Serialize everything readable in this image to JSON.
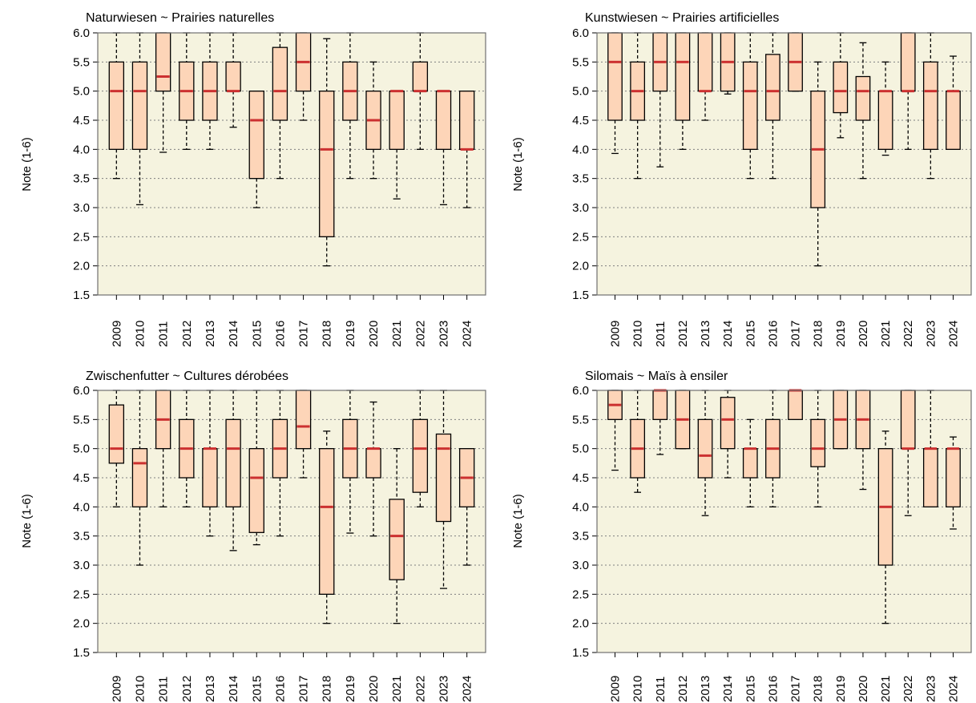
{
  "colors": {
    "plot_background": "#f5f3df",
    "box_fill": "#fdd5b8",
    "median": "#cc3030",
    "gridline": "#808080"
  },
  "chart_data": [
    {
      "type": "box",
      "title": "Naturwiesen   ~   Prairies naturelles",
      "ylabel": "Note (1-6)",
      "ylim": [
        1.5,
        6.0
      ],
      "yticks": [
        "1.5",
        "2.0",
        "2.5",
        "3.0",
        "3.5",
        "4.0",
        "4.5",
        "5.0",
        "5.5",
        "6.0"
      ],
      "grid": "horizontal dotted",
      "categories": [
        "2009",
        "2010",
        "2011",
        "2012",
        "2013",
        "2014",
        "2015",
        "2016",
        "2017",
        "2018",
        "2019",
        "2020",
        "2021",
        "2022",
        "2023",
        "2024"
      ],
      "boxes": [
        {
          "lower_whisker": 3.5,
          "q1": 4.0,
          "median": 5.0,
          "q3": 5.5,
          "upper_whisker": 6.0
        },
        {
          "lower_whisker": 3.05,
          "q1": 4.0,
          "median": 5.0,
          "q3": 5.5,
          "upper_whisker": 6.0
        },
        {
          "lower_whisker": 3.95,
          "q1": 5.0,
          "median": 5.25,
          "q3": 6.0,
          "upper_whisker": 6.0
        },
        {
          "lower_whisker": 4.0,
          "q1": 4.5,
          "median": 5.0,
          "q3": 5.5,
          "upper_whisker": 6.0
        },
        {
          "lower_whisker": 4.0,
          "q1": 4.5,
          "median": 5.0,
          "q3": 5.5,
          "upper_whisker": 6.0
        },
        {
          "lower_whisker": 4.38,
          "q1": 5.0,
          "median": 5.0,
          "q3": 5.5,
          "upper_whisker": 6.0
        },
        {
          "lower_whisker": 3.0,
          "q1": 3.5,
          "median": 4.5,
          "q3": 5.0,
          "upper_whisker": 5.0
        },
        {
          "lower_whisker": 3.5,
          "q1": 4.5,
          "median": 5.0,
          "q3": 5.75,
          "upper_whisker": 6.0
        },
        {
          "lower_whisker": 4.5,
          "q1": 5.0,
          "median": 5.5,
          "q3": 6.0,
          "upper_whisker": 6.0
        },
        {
          "lower_whisker": 2.0,
          "q1": 2.5,
          "median": 4.0,
          "q3": 5.0,
          "upper_whisker": 5.9
        },
        {
          "lower_whisker": 3.5,
          "q1": 4.5,
          "median": 5.0,
          "q3": 5.5,
          "upper_whisker": 6.0
        },
        {
          "lower_whisker": 3.5,
          "q1": 4.0,
          "median": 4.5,
          "q3": 5.0,
          "upper_whisker": 5.5
        },
        {
          "lower_whisker": 3.15,
          "q1": 4.0,
          "median": 5.0,
          "q3": 5.0,
          "upper_whisker": 5.0
        },
        {
          "lower_whisker": 4.0,
          "q1": 5.0,
          "median": 5.0,
          "q3": 5.5,
          "upper_whisker": 6.0
        },
        {
          "lower_whisker": 3.05,
          "q1": 4.0,
          "median": 5.0,
          "q3": 5.0,
          "upper_whisker": 5.0
        },
        {
          "lower_whisker": 3.0,
          "q1": 4.0,
          "median": 4.0,
          "q3": 5.0,
          "upper_whisker": 5.0
        }
      ]
    },
    {
      "type": "box",
      "title": "Kunstwiesen   ~   Prairies artificielles",
      "ylabel": "Note (1-6)",
      "ylim": [
        1.5,
        6.0
      ],
      "yticks": [
        "1.5",
        "2.0",
        "2.5",
        "3.0",
        "3.5",
        "4.0",
        "4.5",
        "5.0",
        "5.5",
        "6.0"
      ],
      "grid": "horizontal dotted",
      "categories": [
        "2009",
        "2010",
        "2011",
        "2012",
        "2013",
        "2014",
        "2015",
        "2016",
        "2017",
        "2018",
        "2019",
        "2020",
        "2021",
        "2022",
        "2023",
        "2024"
      ],
      "boxes": [
        {
          "lower_whisker": 3.93,
          "q1": 4.5,
          "median": 5.5,
          "q3": 6.0,
          "upper_whisker": 6.0
        },
        {
          "lower_whisker": 3.5,
          "q1": 4.5,
          "median": 5.0,
          "q3": 5.5,
          "upper_whisker": 6.0
        },
        {
          "lower_whisker": 3.7,
          "q1": 5.0,
          "median": 5.5,
          "q3": 6.0,
          "upper_whisker": 6.0
        },
        {
          "lower_whisker": 4.0,
          "q1": 4.5,
          "median": 5.5,
          "q3": 6.0,
          "upper_whisker": 6.0
        },
        {
          "lower_whisker": 4.5,
          "q1": 5.0,
          "median": 5.0,
          "q3": 6.0,
          "upper_whisker": 6.0
        },
        {
          "lower_whisker": 4.95,
          "q1": 5.0,
          "median": 5.5,
          "q3": 6.0,
          "upper_whisker": 6.0
        },
        {
          "lower_whisker": 3.5,
          "q1": 4.0,
          "median": 5.0,
          "q3": 5.5,
          "upper_whisker": 6.0
        },
        {
          "lower_whisker": 3.5,
          "q1": 4.5,
          "median": 5.0,
          "q3": 5.63,
          "upper_whisker": 6.0
        },
        {
          "lower_whisker": 5.0,
          "q1": 5.0,
          "median": 5.5,
          "q3": 6.0,
          "upper_whisker": 6.0
        },
        {
          "lower_whisker": 2.0,
          "q1": 3.0,
          "median": 4.0,
          "q3": 5.0,
          "upper_whisker": 5.5
        },
        {
          "lower_whisker": 4.2,
          "q1": 4.63,
          "median": 5.0,
          "q3": 5.5,
          "upper_whisker": 6.0
        },
        {
          "lower_whisker": 3.5,
          "q1": 4.5,
          "median": 5.0,
          "q3": 5.25,
          "upper_whisker": 5.83
        },
        {
          "lower_whisker": 3.9,
          "q1": 4.0,
          "median": 5.0,
          "q3": 5.0,
          "upper_whisker": 5.5
        },
        {
          "lower_whisker": 4.0,
          "q1": 5.0,
          "median": 5.0,
          "q3": 6.0,
          "upper_whisker": 6.0
        },
        {
          "lower_whisker": 3.5,
          "q1": 4.0,
          "median": 5.0,
          "q3": 5.5,
          "upper_whisker": 6.0
        },
        {
          "lower_whisker": 4.0,
          "q1": 4.0,
          "median": 5.0,
          "q3": 5.0,
          "upper_whisker": 5.6
        }
      ]
    },
    {
      "type": "box",
      "title": "Zwischenfutter   ~   Cultures dérobées",
      "ylabel": "Note (1-6)",
      "ylim": [
        1.5,
        6.0
      ],
      "yticks": [
        "1.5",
        "2.0",
        "2.5",
        "3.0",
        "3.5",
        "4.0",
        "4.5",
        "5.0",
        "5.5",
        "6.0"
      ],
      "grid": "horizontal dotted",
      "categories": [
        "2009",
        "2010",
        "2011",
        "2012",
        "2013",
        "2014",
        "2015",
        "2016",
        "2017",
        "2018",
        "2019",
        "2020",
        "2021",
        "2022",
        "2023",
        "2024"
      ],
      "boxes": [
        {
          "lower_whisker": 4.0,
          "q1": 4.75,
          "median": 5.0,
          "q3": 5.75,
          "upper_whisker": 6.0
        },
        {
          "lower_whisker": 3.0,
          "q1": 4.0,
          "median": 4.75,
          "q3": 5.0,
          "upper_whisker": 6.0
        },
        {
          "lower_whisker": 4.0,
          "q1": 5.0,
          "median": 5.5,
          "q3": 6.0,
          "upper_whisker": 6.0
        },
        {
          "lower_whisker": 4.0,
          "q1": 4.5,
          "median": 5.0,
          "q3": 5.5,
          "upper_whisker": 6.0
        },
        {
          "lower_whisker": 3.5,
          "q1": 4.0,
          "median": 5.0,
          "q3": 5.0,
          "upper_whisker": 6.0
        },
        {
          "lower_whisker": 3.25,
          "q1": 4.0,
          "median": 5.0,
          "q3": 5.5,
          "upper_whisker": 6.0
        },
        {
          "lower_whisker": 3.35,
          "q1": 3.56,
          "median": 4.5,
          "q3": 5.0,
          "upper_whisker": 6.0
        },
        {
          "lower_whisker": 3.5,
          "q1": 4.5,
          "median": 5.0,
          "q3": 5.5,
          "upper_whisker": 6.0
        },
        {
          "lower_whisker": 4.5,
          "q1": 5.0,
          "median": 5.38,
          "q3": 6.0,
          "upper_whisker": 6.0
        },
        {
          "lower_whisker": 2.0,
          "q1": 2.5,
          "median": 4.0,
          "q3": 5.0,
          "upper_whisker": 5.3
        },
        {
          "lower_whisker": 3.55,
          "q1": 4.5,
          "median": 5.0,
          "q3": 5.5,
          "upper_whisker": 6.0
        },
        {
          "lower_whisker": 3.5,
          "q1": 4.5,
          "median": 5.0,
          "q3": 5.0,
          "upper_whisker": 5.8
        },
        {
          "lower_whisker": 2.0,
          "q1": 2.75,
          "median": 3.5,
          "q3": 4.13,
          "upper_whisker": 5.0
        },
        {
          "lower_whisker": 4.0,
          "q1": 4.25,
          "median": 5.0,
          "q3": 5.5,
          "upper_whisker": 6.0
        },
        {
          "lower_whisker": 2.6,
          "q1": 3.75,
          "median": 5.0,
          "q3": 5.25,
          "upper_whisker": 6.0
        },
        {
          "lower_whisker": 3.0,
          "q1": 4.0,
          "median": 4.5,
          "q3": 5.0,
          "upper_whisker": 5.0
        }
      ]
    },
    {
      "type": "box",
      "title": "Silomais   ~   Maïs à ensiler",
      "ylabel": "Note (1-6)",
      "ylim": [
        1.5,
        6.0
      ],
      "yticks": [
        "1.5",
        "2.0",
        "2.5",
        "3.0",
        "3.5",
        "4.0",
        "4.5",
        "5.0",
        "5.5",
        "6.0"
      ],
      "grid": "horizontal dotted",
      "categories": [
        "2009",
        "2010",
        "2011",
        "2012",
        "2013",
        "2014",
        "2015",
        "2016",
        "2017",
        "2018",
        "2019",
        "2020",
        "2021",
        "2022",
        "2023",
        "2024"
      ],
      "boxes": [
        {
          "lower_whisker": 4.63,
          "q1": 5.5,
          "median": 5.75,
          "q3": 6.0,
          "upper_whisker": 6.0
        },
        {
          "lower_whisker": 4.25,
          "q1": 4.5,
          "median": 5.0,
          "q3": 5.5,
          "upper_whisker": 6.0
        },
        {
          "lower_whisker": 4.9,
          "q1": 5.5,
          "median": 6.0,
          "q3": 6.0,
          "upper_whisker": 6.0
        },
        {
          "lower_whisker": 5.0,
          "q1": 5.0,
          "median": 5.5,
          "q3": 6.0,
          "upper_whisker": 6.0
        },
        {
          "lower_whisker": 3.85,
          "q1": 4.5,
          "median": 4.88,
          "q3": 5.5,
          "upper_whisker": 6.0
        },
        {
          "lower_whisker": 4.5,
          "q1": 5.0,
          "median": 5.5,
          "q3": 5.88,
          "upper_whisker": 6.0
        },
        {
          "lower_whisker": 4.0,
          "q1": 4.5,
          "median": 5.0,
          "q3": 5.0,
          "upper_whisker": 5.5
        },
        {
          "lower_whisker": 4.0,
          "q1": 4.5,
          "median": 5.0,
          "q3": 5.5,
          "upper_whisker": 6.0
        },
        {
          "lower_whisker": 5.5,
          "q1": 5.5,
          "median": 6.0,
          "q3": 6.0,
          "upper_whisker": 6.0
        },
        {
          "lower_whisker": 4.0,
          "q1": 4.69,
          "median": 5.0,
          "q3": 5.5,
          "upper_whisker": 6.0
        },
        {
          "lower_whisker": 5.0,
          "q1": 5.0,
          "median": 5.5,
          "q3": 6.0,
          "upper_whisker": 6.0
        },
        {
          "lower_whisker": 4.3,
          "q1": 5.0,
          "median": 5.5,
          "q3": 6.0,
          "upper_whisker": 6.0
        },
        {
          "lower_whisker": 2.0,
          "q1": 3.0,
          "median": 4.0,
          "q3": 5.0,
          "upper_whisker": 5.3
        },
        {
          "lower_whisker": 3.85,
          "q1": 5.0,
          "median": 5.0,
          "q3": 6.0,
          "upper_whisker": 6.0
        },
        {
          "lower_whisker": 4.0,
          "q1": 4.0,
          "median": 5.0,
          "q3": 5.0,
          "upper_whisker": 6.0
        },
        {
          "lower_whisker": 3.62,
          "q1": 4.0,
          "median": 5.0,
          "q3": 5.0,
          "upper_whisker": 5.2
        }
      ]
    }
  ]
}
